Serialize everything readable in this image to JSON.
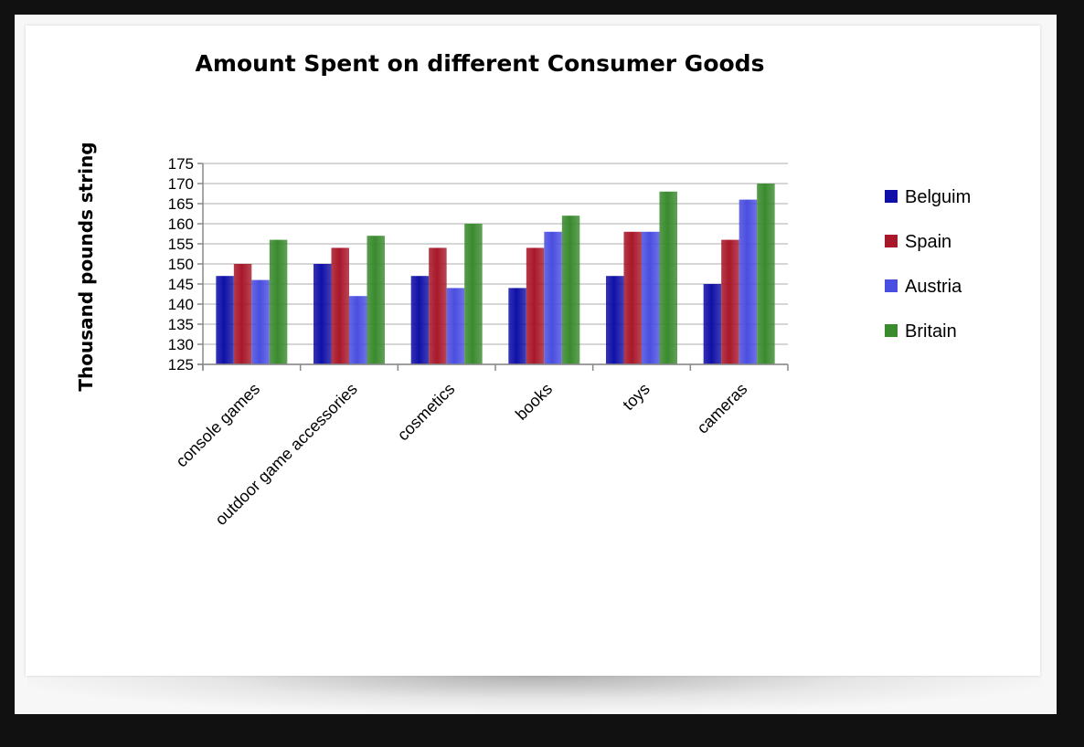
{
  "chart_data": {
    "type": "bar",
    "title": "Amount Spent on different Consumer Goods",
    "xlabel": "",
    "ylabel": "Thousand pounds string",
    "ylim": [
      125,
      175
    ],
    "yticks": [
      125,
      130,
      135,
      140,
      145,
      150,
      155,
      160,
      165,
      170,
      175
    ],
    "grid": true,
    "legend_position": "right",
    "categories": [
      "console games",
      "outdoor game accessories",
      "cosmetics",
      "books",
      "toys",
      "cameras"
    ],
    "series": [
      {
        "name": "Belguim",
        "color": "#1010a8",
        "values": [
          147,
          150,
          147,
          144,
          147,
          145
        ]
      },
      {
        "name": "Spain",
        "color": "#a8182a",
        "values": [
          150,
          154,
          154,
          154,
          158,
          156
        ]
      },
      {
        "name": "Austria",
        "color": "#4a4ee0",
        "values": [
          146,
          142,
          144,
          158,
          158,
          166
        ]
      },
      {
        "name": "Britain",
        "color": "#3a8a2e",
        "values": [
          156,
          157,
          160,
          162,
          168,
          170
        ]
      }
    ]
  }
}
